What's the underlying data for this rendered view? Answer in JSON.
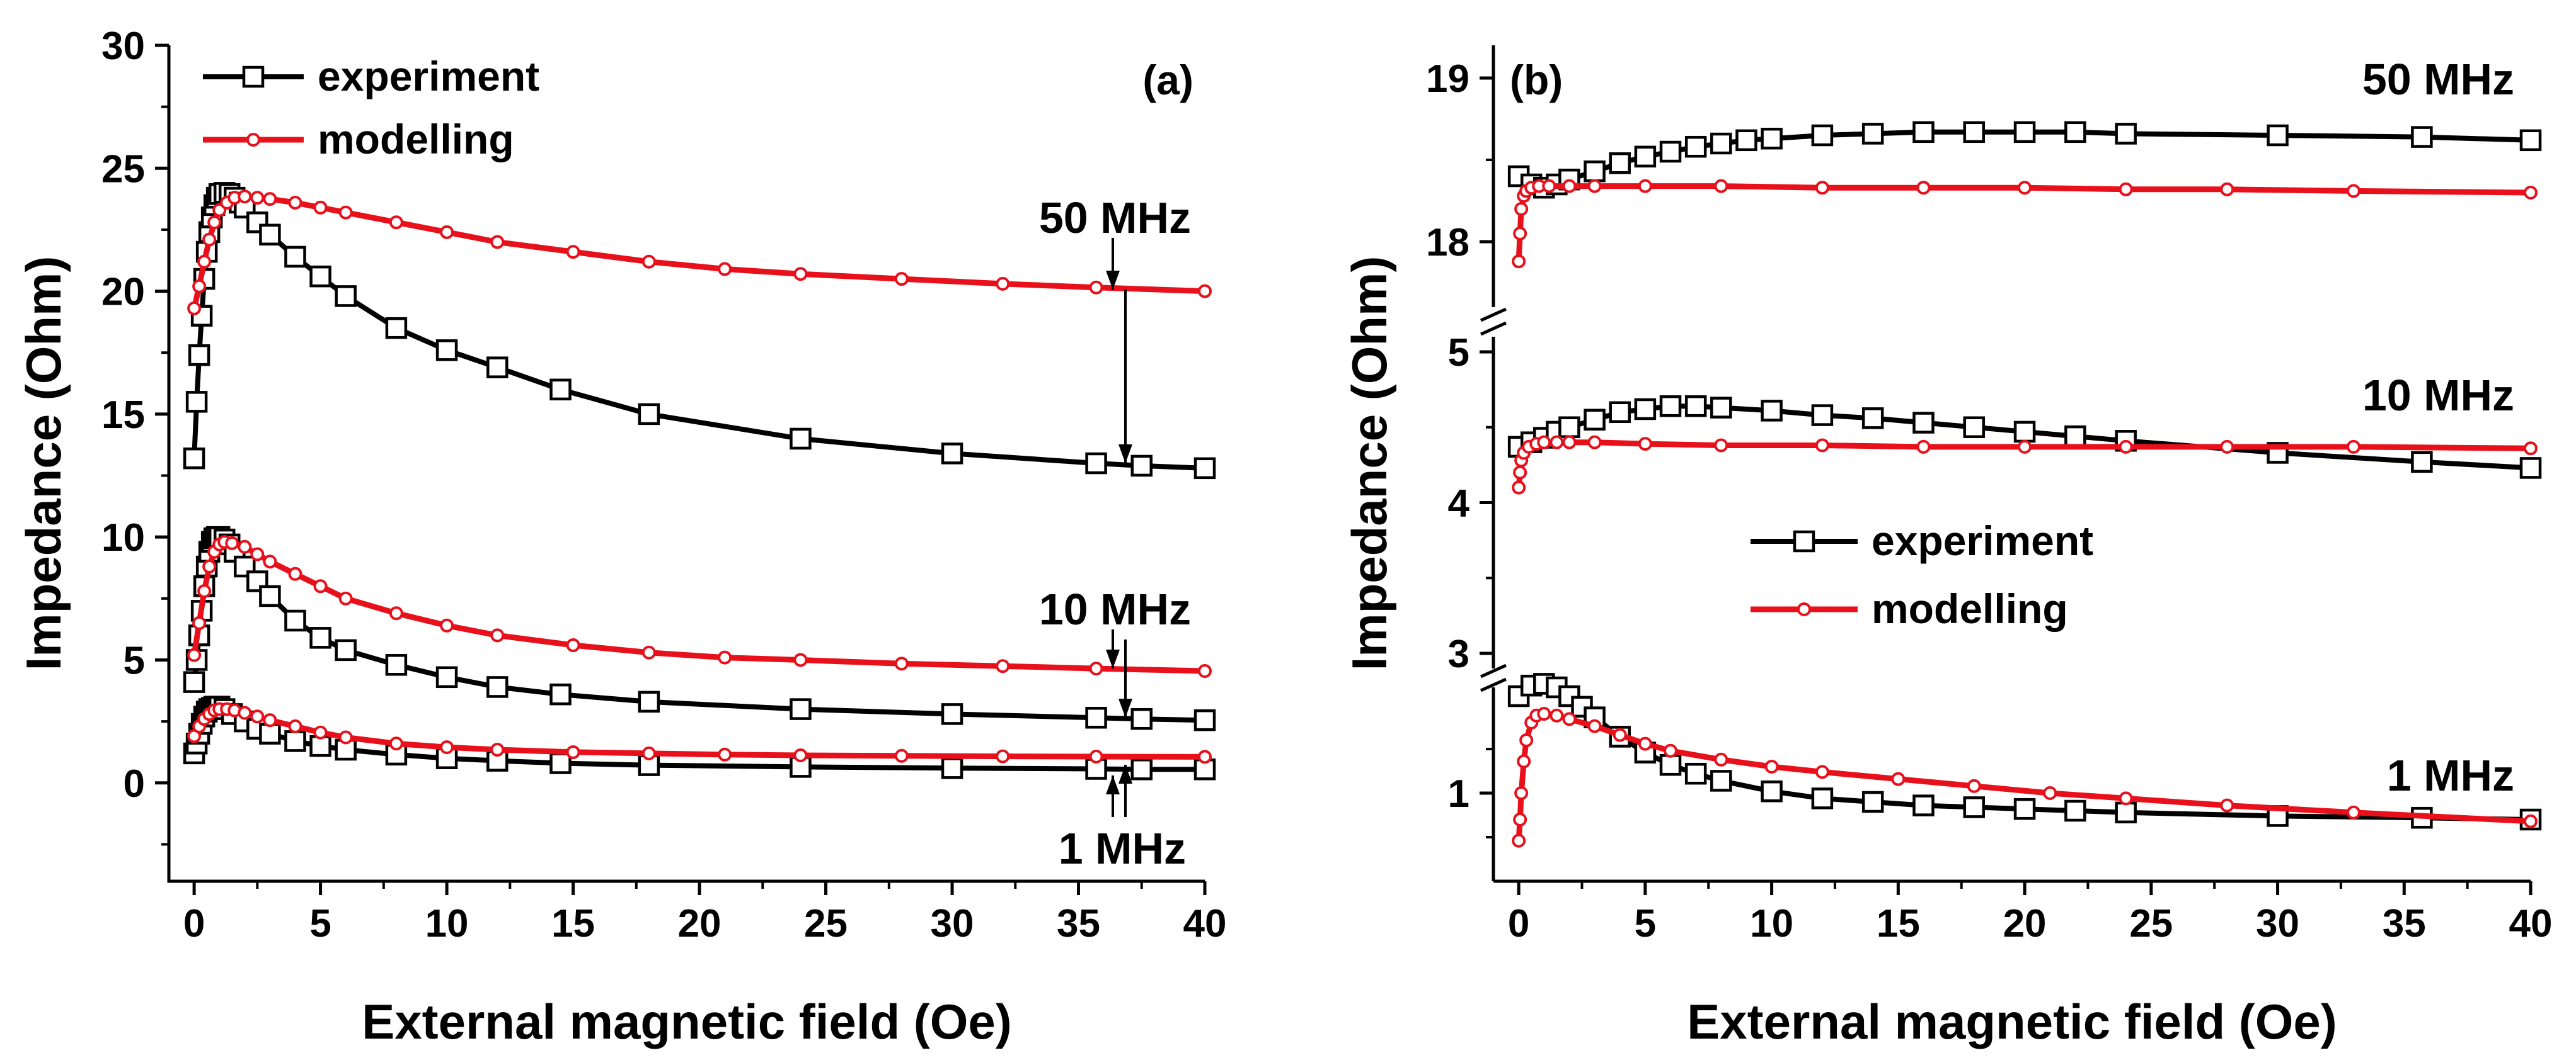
{
  "chart_data": [
    {
      "id": "a",
      "type": "line",
      "panel_label": "(a)",
      "xlabel": "External magnetic field (Oe)",
      "ylabel": "Impedance (Ohm)",
      "xlim": [
        -1,
        40
      ],
      "ylim": [
        -4,
        30
      ],
      "x_ticks": [
        0,
        5,
        10,
        15,
        20,
        25,
        30,
        35,
        40
      ],
      "y_ticks": [
        0,
        5,
        10,
        15,
        20,
        25,
        30
      ],
      "legend": {
        "position": "top-left",
        "entries": [
          {
            "name": "experiment",
            "color": "#000000",
            "marker": "square"
          },
          {
            "name": "modelling",
            "color": "#e8101a",
            "marker": "circle"
          }
        ]
      },
      "frequency_labels": [
        {
          "text": "50 MHz",
          "x": 36.5,
          "y": 23.0
        },
        {
          "text": "10 MHz",
          "x": 36.5,
          "y": 7.0
        },
        {
          "text": "1 MHz",
          "x": 36.5,
          "y": -2.6
        }
      ],
      "series": [
        {
          "name": "experiment",
          "frequency": "50 MHz",
          "color": "#000000",
          "marker": "square",
          "x": [
            0,
            0.1,
            0.2,
            0.3,
            0.4,
            0.5,
            0.6,
            0.7,
            0.8,
            0.9,
            1.0,
            1.2,
            1.4,
            1.6,
            1.8,
            2.0,
            2.5,
            3.0,
            4.0,
            5.0,
            6.0,
            8.0,
            10.0,
            12.0,
            14.5,
            18.0,
            24.0,
            30.0,
            35.7,
            37.5,
            40.0
          ],
          "y": [
            13.2,
            15.5,
            17.4,
            19.0,
            20.5,
            21.6,
            22.4,
            23.0,
            23.5,
            23.8,
            23.95,
            24.0,
            23.95,
            23.8,
            23.6,
            23.4,
            22.8,
            22.3,
            21.4,
            20.6,
            19.8,
            18.5,
            17.6,
            16.9,
            16.0,
            15.0,
            14.0,
            13.4,
            13.0,
            12.9,
            12.8
          ]
        },
        {
          "name": "modelling",
          "frequency": "50 MHz",
          "color": "#e8101a",
          "marker": "circle",
          "x": [
            0,
            0.2,
            0.4,
            0.6,
            0.8,
            1.0,
            1.3,
            1.6,
            2.0,
            2.5,
            3.0,
            4.0,
            5.0,
            6.0,
            8.0,
            10.0,
            12.0,
            15.0,
            18.0,
            21.0,
            24.0,
            28.0,
            32.0,
            35.7,
            40.0
          ],
          "y": [
            19.3,
            20.2,
            21.2,
            22.1,
            22.8,
            23.3,
            23.6,
            23.8,
            23.85,
            23.8,
            23.75,
            23.6,
            23.4,
            23.2,
            22.8,
            22.4,
            22.0,
            21.6,
            21.2,
            20.9,
            20.7,
            20.5,
            20.3,
            20.15,
            20.0
          ]
        },
        {
          "name": "experiment",
          "frequency": "10 MHz",
          "color": "#000000",
          "marker": "square",
          "x": [
            0,
            0.1,
            0.2,
            0.3,
            0.4,
            0.5,
            0.6,
            0.7,
            0.8,
            0.9,
            1.0,
            1.2,
            1.4,
            1.6,
            2.0,
            2.5,
            3.0,
            4.0,
            5.0,
            6.0,
            8.0,
            10.0,
            12.0,
            14.5,
            18.0,
            24.0,
            30.0,
            35.7,
            37.5,
            40.0
          ],
          "y": [
            4.1,
            5.0,
            6.0,
            7.0,
            8.0,
            8.8,
            9.4,
            9.8,
            9.95,
            10.0,
            10.0,
            9.9,
            9.7,
            9.4,
            8.8,
            8.2,
            7.6,
            6.6,
            5.9,
            5.4,
            4.8,
            4.3,
            3.9,
            3.6,
            3.3,
            3.0,
            2.8,
            2.65,
            2.6,
            2.55
          ]
        },
        {
          "name": "modelling",
          "frequency": "10 MHz",
          "color": "#e8101a",
          "marker": "circle",
          "x": [
            0,
            0.2,
            0.4,
            0.6,
            0.8,
            1.0,
            1.2,
            1.5,
            2.0,
            2.5,
            3.0,
            4.0,
            5.0,
            6.0,
            8.0,
            10.0,
            12.0,
            15.0,
            18.0,
            21.0,
            24.0,
            28.0,
            32.0,
            35.7,
            40.0
          ],
          "y": [
            5.2,
            6.5,
            7.8,
            8.8,
            9.4,
            9.7,
            9.8,
            9.75,
            9.6,
            9.3,
            9.0,
            8.5,
            8.0,
            7.5,
            6.9,
            6.4,
            6.0,
            5.6,
            5.3,
            5.1,
            5.0,
            4.85,
            4.75,
            4.65,
            4.55
          ]
        },
        {
          "name": "experiment",
          "frequency": "1 MHz",
          "color": "#000000",
          "marker": "square",
          "x": [
            0,
            0.1,
            0.2,
            0.3,
            0.4,
            0.5,
            0.6,
            0.7,
            0.8,
            0.9,
            1.0,
            1.2,
            1.5,
            2.0,
            2.5,
            3.0,
            4.0,
            5.0,
            6.0,
            8.0,
            10.0,
            12.0,
            14.5,
            18.0,
            24.0,
            30.0,
            35.7,
            37.5,
            40.0
          ],
          "y": [
            1.2,
            1.6,
            2.0,
            2.4,
            2.7,
            2.9,
            3.0,
            3.05,
            3.1,
            3.1,
            3.1,
            3.0,
            2.8,
            2.5,
            2.2,
            2.0,
            1.7,
            1.5,
            1.35,
            1.15,
            1.0,
            0.9,
            0.8,
            0.72,
            0.65,
            0.6,
            0.57,
            0.55,
            0.55
          ]
        },
        {
          "name": "modelling",
          "frequency": "1 MHz",
          "color": "#e8101a",
          "marker": "circle",
          "x": [
            0,
            0.2,
            0.4,
            0.6,
            0.8,
            1.0,
            1.3,
            1.6,
            2.0,
            2.5,
            3.0,
            4.0,
            5.0,
            6.0,
            8.0,
            10.0,
            12.0,
            15.0,
            18.0,
            21.0,
            24.0,
            28.0,
            32.0,
            35.7,
            40.0
          ],
          "y": [
            1.9,
            2.3,
            2.6,
            2.8,
            2.95,
            3.0,
            3.0,
            2.95,
            2.85,
            2.7,
            2.55,
            2.3,
            2.05,
            1.85,
            1.6,
            1.45,
            1.35,
            1.25,
            1.2,
            1.15,
            1.12,
            1.1,
            1.08,
            1.07,
            1.06
          ]
        }
      ]
    },
    {
      "id": "b",
      "type": "line",
      "panel_label": "(b)",
      "xlabel": "External magnetic field (Oe)",
      "ylabel": "Impedance (Ohm)",
      "xlim": [
        -1,
        40
      ],
      "x_ticks": [
        0,
        5,
        10,
        15,
        20,
        25,
        30,
        35,
        40
      ],
      "y_tick_labels": [
        "1",
        "3",
        "4",
        "5",
        "18",
        "19"
      ],
      "broken_axis": true,
      "segments": [
        {
          "name": "upper",
          "ylim": [
            17.6,
            19.2
          ],
          "ticks": [
            18,
            19
          ]
        },
        {
          "name": "middle",
          "ylim": [
            2.9,
            5.1
          ],
          "ticks": [
            3,
            4,
            5
          ]
        },
        {
          "name": "lower",
          "ylim": [
            0.5,
            1.6
          ],
          "ticks": [
            1
          ]
        }
      ],
      "legend": {
        "position": "center",
        "entries": [
          {
            "name": "experiment",
            "color": "#000000",
            "marker": "square"
          },
          {
            "name": "modelling",
            "color": "#e8101a",
            "marker": "circle"
          }
        ]
      },
      "frequency_labels": [
        {
          "text": "50 MHz",
          "segment": "upper",
          "y": 19.0
        },
        {
          "text": "10 MHz",
          "segment": "middle",
          "y": 4.68
        },
        {
          "text": "1 MHz",
          "segment": "lower",
          "y": 1.13
        }
      ],
      "series": [
        {
          "name": "experiment",
          "frequency": "50 MHz",
          "segment": "upper",
          "color": "#000000",
          "marker": "square",
          "x": [
            0,
            0.5,
            1.0,
            1.5,
            2.0,
            3.0,
            4.0,
            5.0,
            6.0,
            7.0,
            8.0,
            9.0,
            10.0,
            12.0,
            14.0,
            16.0,
            18.0,
            20.0,
            22.0,
            24.0,
            30.0,
            35.7,
            40.0
          ],
          "y": [
            18.4,
            18.35,
            18.33,
            18.35,
            18.38,
            18.43,
            18.48,
            18.52,
            18.55,
            18.58,
            18.6,
            18.62,
            18.63,
            18.65,
            18.66,
            18.67,
            18.67,
            18.67,
            18.67,
            18.66,
            18.65,
            18.64,
            18.62
          ]
        },
        {
          "name": "modelling",
          "frequency": "50 MHz",
          "segment": "upper",
          "color": "#e8101a",
          "marker": "circle",
          "x": [
            0,
            0.05,
            0.1,
            0.2,
            0.3,
            0.5,
            0.8,
            1.2,
            2.0,
            3.0,
            5.0,
            8.0,
            12.0,
            16.0,
            20.0,
            24.0,
            28.0,
            33.0,
            40.0
          ],
          "y": [
            17.88,
            18.05,
            18.2,
            18.28,
            18.31,
            18.33,
            18.34,
            18.34,
            18.34,
            18.34,
            18.34,
            18.34,
            18.33,
            18.33,
            18.33,
            18.32,
            18.32,
            18.31,
            18.3
          ]
        },
        {
          "name": "experiment",
          "frequency": "10 MHz",
          "segment": "middle",
          "color": "#000000",
          "marker": "square",
          "x": [
            0,
            0.5,
            1.0,
            1.5,
            2.0,
            3.0,
            4.0,
            5.0,
            6.0,
            7.0,
            8.0,
            10.0,
            12.0,
            14.0,
            16.0,
            18.0,
            20.0,
            22.0,
            24.0,
            30.0,
            35.7,
            40.0
          ],
          "y": [
            4.37,
            4.4,
            4.43,
            4.47,
            4.5,
            4.55,
            4.6,
            4.62,
            4.64,
            4.64,
            4.63,
            4.61,
            4.58,
            4.56,
            4.53,
            4.5,
            4.47,
            4.44,
            4.41,
            4.33,
            4.27,
            4.23
          ]
        },
        {
          "name": "modelling",
          "frequency": "10 MHz",
          "segment": "middle",
          "color": "#e8101a",
          "marker": "circle",
          "x": [
            0,
            0.05,
            0.1,
            0.2,
            0.4,
            0.7,
            1.0,
            1.5,
            2.0,
            3.0,
            5.0,
            8.0,
            12.0,
            16.0,
            20.0,
            24.0,
            28.0,
            33.0,
            40.0
          ],
          "y": [
            4.1,
            4.2,
            4.28,
            4.33,
            4.37,
            4.39,
            4.4,
            4.4,
            4.4,
            4.4,
            4.39,
            4.38,
            4.38,
            4.37,
            4.37,
            4.37,
            4.37,
            4.37,
            4.36
          ]
        },
        {
          "name": "experiment",
          "frequency": "1 MHz",
          "segment": "lower",
          "color": "#000000",
          "marker": "square",
          "x": [
            0,
            0.5,
            1.0,
            1.5,
            2.0,
            2.5,
            3.0,
            4.0,
            5.0,
            6.0,
            7.0,
            8.0,
            10.0,
            12.0,
            14.0,
            16.0,
            18.0,
            20.0,
            22.0,
            24.0,
            30.0,
            35.7,
            40.0
          ],
          "y": [
            1.55,
            1.61,
            1.62,
            1.6,
            1.55,
            1.49,
            1.43,
            1.32,
            1.23,
            1.16,
            1.11,
            1.07,
            1.01,
            0.97,
            0.95,
            0.93,
            0.92,
            0.91,
            0.9,
            0.89,
            0.87,
            0.86,
            0.85
          ]
        },
        {
          "name": "modelling",
          "frequency": "1 MHz",
          "segment": "lower",
          "color": "#e8101a",
          "marker": "circle",
          "x": [
            0,
            0.05,
            0.1,
            0.2,
            0.3,
            0.5,
            0.7,
            1.0,
            1.5,
            2.0,
            3.0,
            4.0,
            5.0,
            6.0,
            8.0,
            10.0,
            12.0,
            15.0,
            18.0,
            21.0,
            24.0,
            28.0,
            33.0,
            40.0
          ],
          "y": [
            0.73,
            0.85,
            1.0,
            1.18,
            1.3,
            1.4,
            1.44,
            1.45,
            1.44,
            1.42,
            1.38,
            1.33,
            1.28,
            1.24,
            1.19,
            1.15,
            1.12,
            1.08,
            1.04,
            1.0,
            0.97,
            0.93,
            0.89,
            0.84
          ]
        }
      ]
    }
  ]
}
